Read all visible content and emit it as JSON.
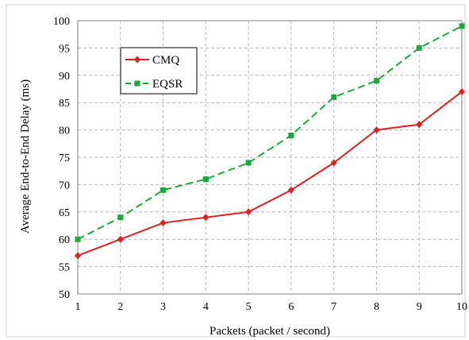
{
  "chart_data": {
    "type": "line",
    "title": "",
    "xlabel": "Packets (packet / second)",
    "ylabel": "Average End-to-End Delay (ms)",
    "x": [
      1,
      2,
      3,
      4,
      5,
      6,
      7,
      8,
      9,
      10
    ],
    "xlim": [
      1,
      10
    ],
    "ylim": [
      50,
      100
    ],
    "xticks": [
      "1",
      "2",
      "3",
      "4",
      "5",
      "6",
      "7",
      "8",
      "9",
      "10"
    ],
    "yticks": [
      "50",
      "55",
      "60",
      "65",
      "70",
      "75",
      "80",
      "85",
      "90",
      "95",
      "100"
    ],
    "grid": true,
    "legend_position": "top-left",
    "series": [
      {
        "name": "CMQ",
        "values": [
          57,
          60,
          63,
          64,
          65,
          69,
          74,
          80,
          81,
          87
        ],
        "color": "#e02020",
        "line_style": "solid",
        "marker": "diamond"
      },
      {
        "name": "EQSR",
        "values": [
          60,
          64,
          69,
          71,
          74,
          79,
          86,
          89,
          95,
          99
        ],
        "color": "#1aaa3c",
        "line_style": "dashed",
        "marker": "square"
      }
    ]
  }
}
